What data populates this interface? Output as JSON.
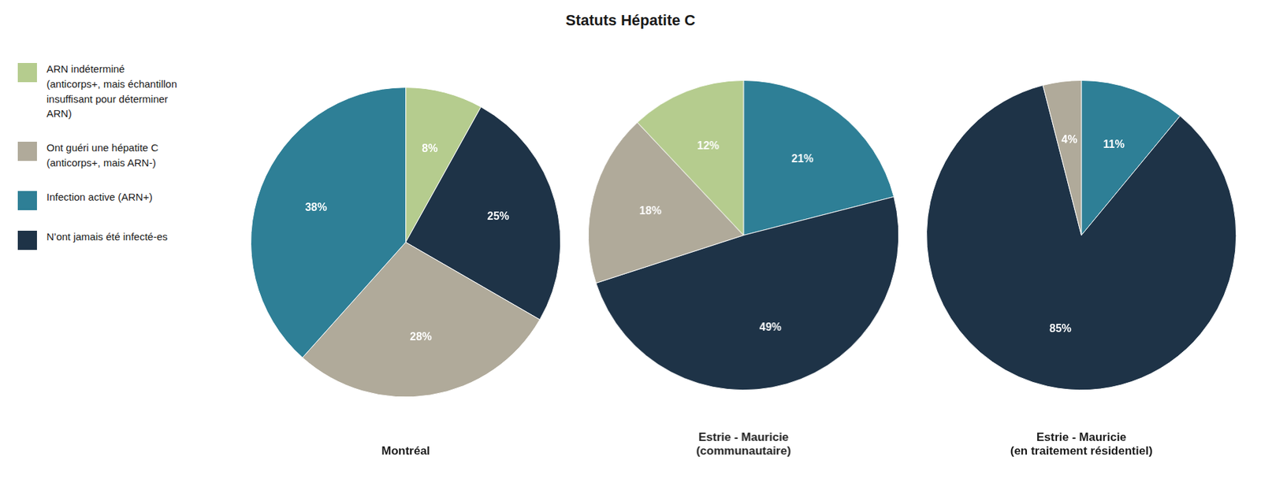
{
  "title": "Statuts Hépatite C",
  "series": [
    {
      "name": "ARN indéterminé\n(anticorps+, mais échantillon\ninsuffisant pour déterminer\nARN)",
      "color": "#b5cc8e"
    },
    {
      "name": "Ont guéri une hépatite C\n(anticorps+, mais ARN-)",
      "color": "#b0aa9a"
    },
    {
      "name": "Infection active (ARN+)",
      "color": "#2e7f96"
    },
    {
      "name": "N’ont jamais été infecté-es",
      "color": "#1e3347"
    }
  ],
  "chart_data": [
    {
      "type": "pie",
      "title": "Montréal",
      "values": [
        8,
        25,
        28,
        38
      ],
      "value_labels": [
        "8%",
        "25%",
        "28%",
        "38%"
      ],
      "colors": [
        "#b5cc8e",
        "#1e3347",
        "#b0aa9a",
        "#2e7f96"
      ],
      "data_labels": true
    },
    {
      "type": "pie",
      "title": "Estrie - Mauricie\n(communautaire)",
      "values": [
        21,
        49,
        18,
        12
      ],
      "value_labels": [
        "21%",
        "49%",
        "18%",
        "12%"
      ],
      "colors": [
        "#2e7f96",
        "#1e3347",
        "#b0aa9a",
        "#b5cc8e"
      ],
      "data_labels": true
    },
    {
      "type": "pie",
      "title": "Estrie - Mauricie\n(en traitement résidentiel)",
      "values": [
        11,
        85,
        4
      ],
      "value_labels": [
        "11%",
        "85%",
        "4%"
      ],
      "colors": [
        "#2e7f96",
        "#1e3347",
        "#b0aa9a"
      ],
      "data_labels": true
    }
  ]
}
